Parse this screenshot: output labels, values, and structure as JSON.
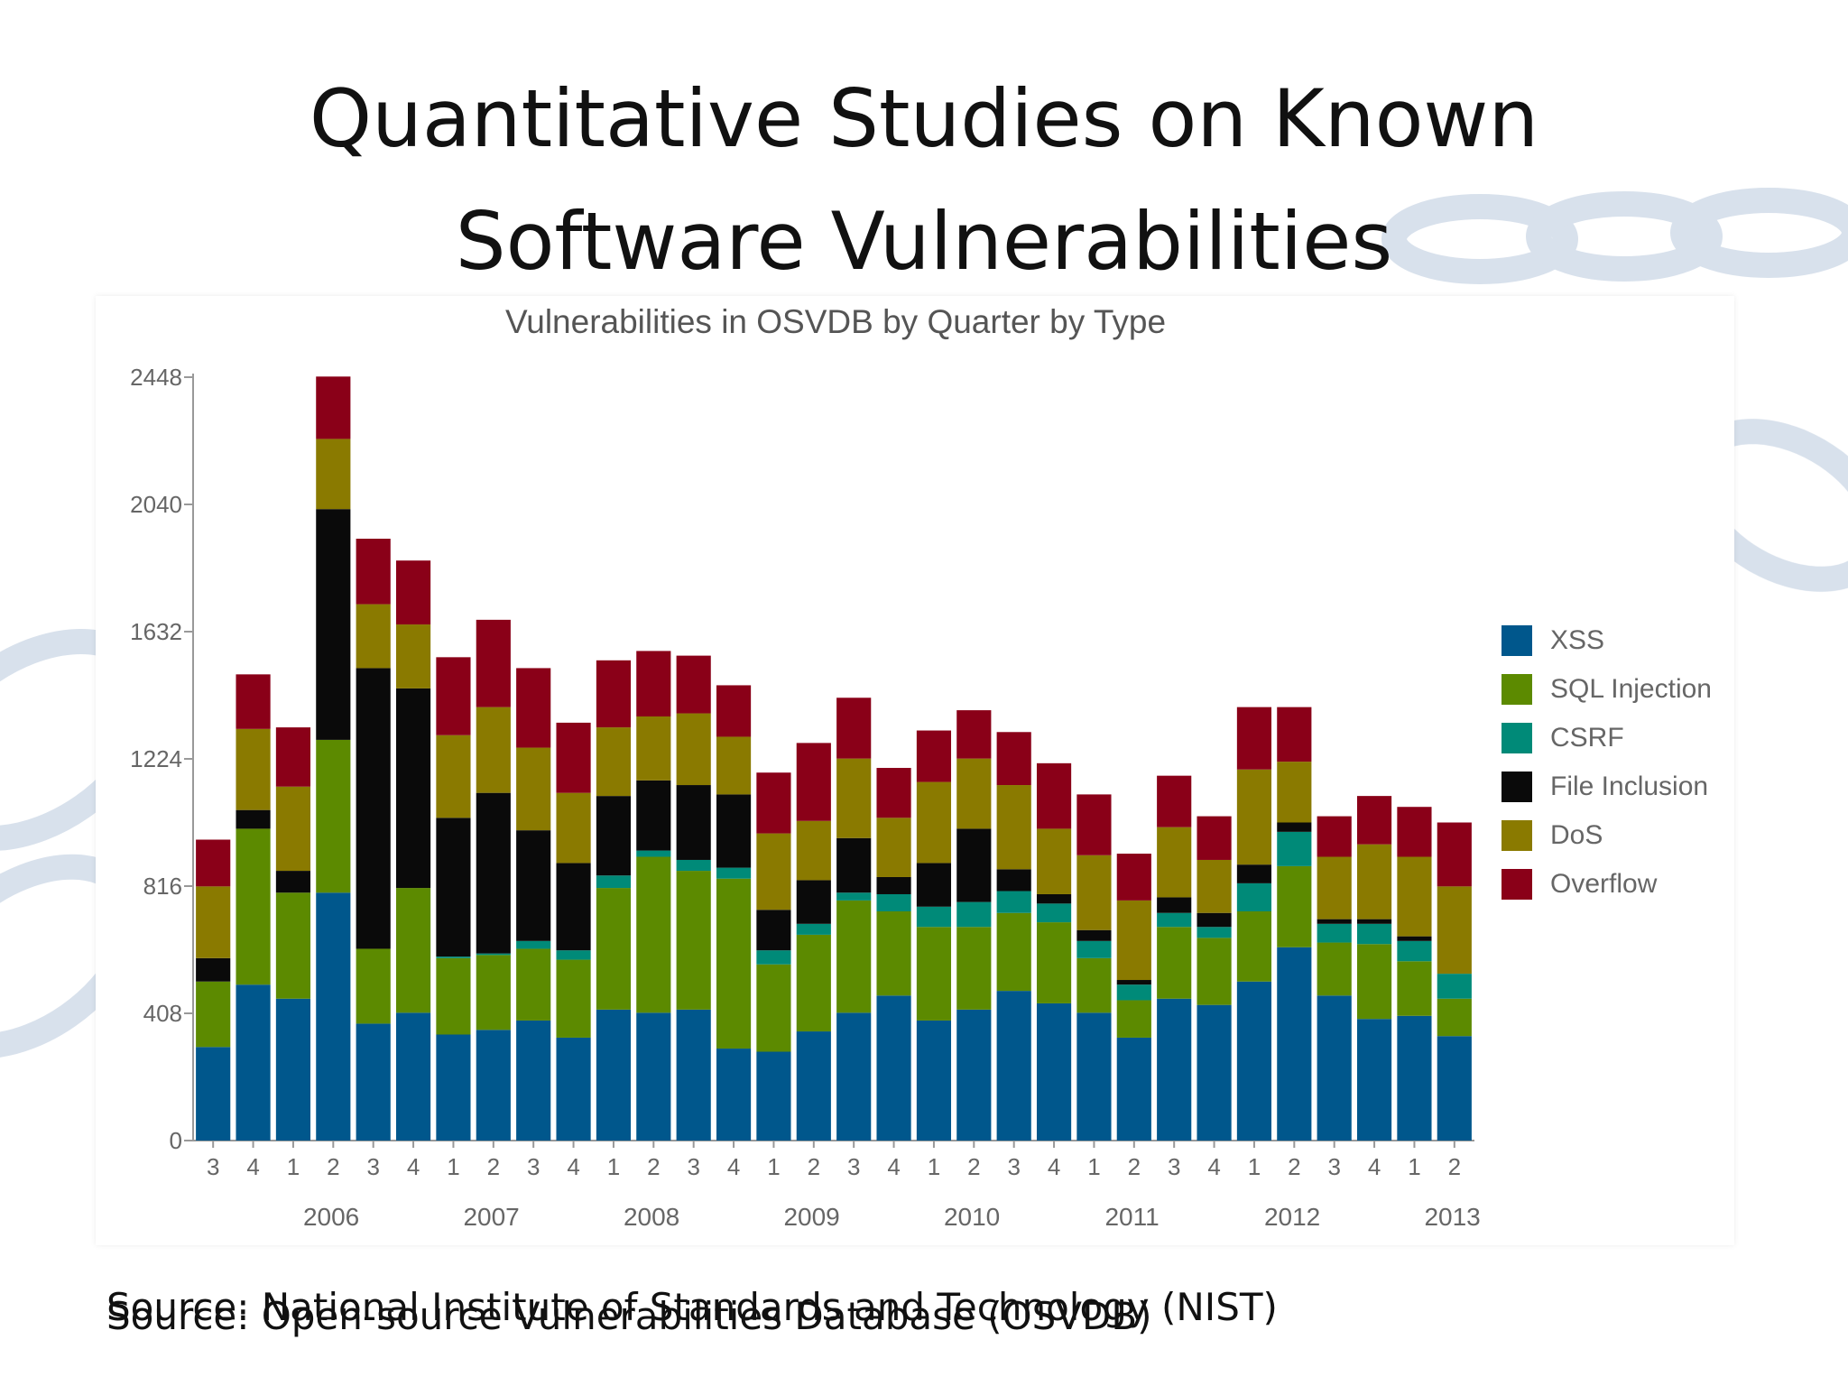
{
  "slide": {
    "title_line1": "Quantitative Studies on Known",
    "title_line2": "Software Vulnerabilities",
    "source_line1": "Source: National Institute of Standards and Technology (NIST)",
    "source_line2": "Source: Open-source Vulnerabilities Database (OSVDB)"
  },
  "chart_data": {
    "type": "bar",
    "stacked": true,
    "title": "Vulnerabilities in OSVDB by Quarter by Type",
    "xlabel": "",
    "ylabel": "",
    "ylim": [
      0,
      2448
    ],
    "yticks": [
      0,
      408,
      816,
      1224,
      1632,
      2040,
      2448
    ],
    "grid": false,
    "legend_position": "right",
    "categories": [
      "3",
      "4",
      "1",
      "2",
      "3",
      "4",
      "1",
      "2",
      "3",
      "4",
      "1",
      "2",
      "3",
      "4",
      "1",
      "2",
      "3",
      "4",
      "1",
      "2",
      "3",
      "4",
      "1",
      "2",
      "3",
      "4",
      "1",
      "2",
      "3",
      "4",
      "1",
      "2"
    ],
    "year_labels": [
      {
        "label": "2006",
        "index": 3
      },
      {
        "label": "2007",
        "index": 7
      },
      {
        "label": "2008",
        "index": 11
      },
      {
        "label": "2009",
        "index": 15
      },
      {
        "label": "2010",
        "index": 19
      },
      {
        "label": "2011",
        "index": 23
      },
      {
        "label": "2012",
        "index": 27
      },
      {
        "label": "2013",
        "index": 31
      }
    ],
    "series": [
      {
        "name": "XSS",
        "color": "#00578C",
        "values": [
          300,
          500,
          455,
          795,
          375,
          410,
          340,
          355,
          385,
          330,
          420,
          410,
          420,
          295,
          285,
          350,
          410,
          465,
          385,
          420,
          480,
          440,
          410,
          330,
          455,
          435,
          510,
          620,
          465,
          390,
          400,
          335
        ]
      },
      {
        "name": "SQL Injection",
        "color": "#5C8A00",
        "values": [
          210,
          500,
          340,
          490,
          240,
          400,
          245,
          240,
          230,
          250,
          390,
          500,
          445,
          545,
          280,
          310,
          360,
          270,
          300,
          265,
          250,
          260,
          175,
          120,
          230,
          215,
          225,
          260,
          170,
          240,
          175,
          120
        ]
      },
      {
        "name": "CSRF",
        "color": "#008A78",
        "values": [
          0,
          0,
          0,
          0,
          0,
          0,
          5,
          5,
          25,
          30,
          40,
          20,
          35,
          35,
          45,
          35,
          25,
          55,
          65,
          80,
          70,
          60,
          55,
          50,
          45,
          35,
          90,
          110,
          60,
          65,
          65,
          80
        ]
      },
      {
        "name": "File Inclusion",
        "color": "#0A0A0A",
        "values": [
          75,
          60,
          70,
          740,
          900,
          640,
          445,
          515,
          355,
          280,
          255,
          225,
          240,
          235,
          130,
          140,
          175,
          55,
          140,
          235,
          70,
          30,
          35,
          15,
          50,
          45,
          60,
          30,
          15,
          15,
          15,
          0
        ]
      },
      {
        "name": "DoS",
        "color": "#8A7A00",
        "values": [
          230,
          260,
          270,
          225,
          205,
          205,
          265,
          275,
          265,
          225,
          220,
          205,
          230,
          185,
          245,
          190,
          255,
          190,
          260,
          225,
          270,
          210,
          240,
          255,
          225,
          170,
          305,
          195,
          200,
          240,
          255,
          280
        ]
      },
      {
        "name": "Overflow",
        "color": "#8A0018",
        "values": [
          150,
          175,
          190,
          200,
          210,
          205,
          250,
          280,
          255,
          225,
          215,
          210,
          185,
          165,
          195,
          250,
          195,
          160,
          165,
          155,
          170,
          210,
          195,
          150,
          165,
          140,
          200,
          175,
          130,
          155,
          160,
          205
        ]
      }
    ]
  }
}
